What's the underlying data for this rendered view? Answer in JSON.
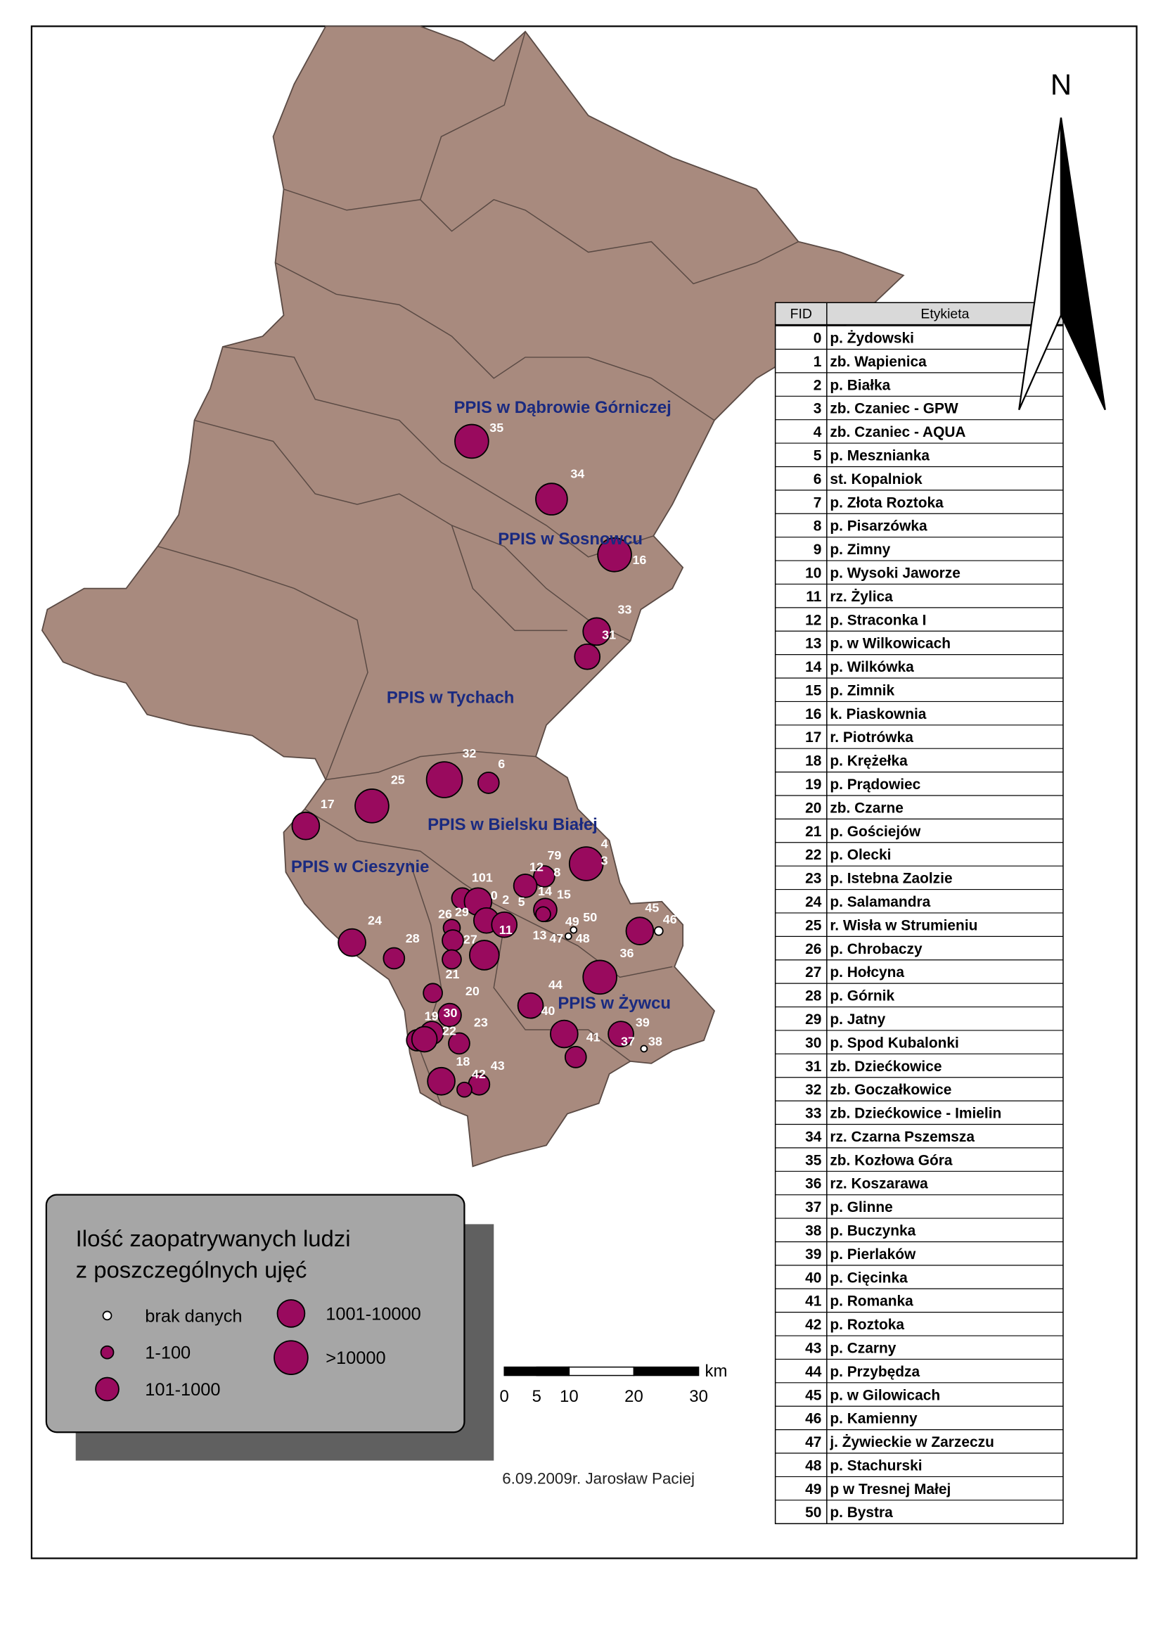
{
  "north": "N",
  "regions": [
    "PPIS w Dąbrowie Górniczej",
    "PPIS w Sosnowcu",
    "PPIS w Tychach",
    "PPIS w Bielsku Białej",
    "PPIS w Cieszynie",
    "PPIS w Żywcu"
  ],
  "map_labels": [
    "35",
    "34",
    "16",
    "33",
    "31",
    "32",
    "6",
    "25",
    "17",
    "4",
    "3",
    "79",
    "12",
    "8",
    "101",
    "0",
    "2",
    "5",
    "14",
    "15",
    "26",
    "29",
    "11",
    "13",
    "47",
    "48",
    "49",
    "50",
    "27",
    "24",
    "28",
    "21",
    "20",
    "36",
    "45",
    "46",
    "44",
    "40",
    "19",
    "30",
    "22",
    "23",
    "18",
    "41",
    "39",
    "37",
    "38",
    "42",
    "43"
  ],
  "legend": {
    "title": [
      "Ilość zaopatrywanych ludzi",
      "z poszczególnych ujęć"
    ],
    "items": [
      "brak danych",
      "1-100",
      "101-1000",
      "1001-10000",
      ">10000"
    ]
  },
  "scale": {
    "ticks": [
      0,
      5,
      10,
      20,
      30
    ],
    "unit": "km"
  },
  "footer": "6.09.2009r. Jarosław Paciej",
  "table": {
    "header": [
      "FID",
      "Etykieta"
    ],
    "rows": [
      [
        0,
        "p. Żydowski"
      ],
      [
        1,
        "zb. Wapienica"
      ],
      [
        2,
        "p. Białka"
      ],
      [
        3,
        "zb. Czaniec - GPW"
      ],
      [
        4,
        "zb. Czaniec - AQUA"
      ],
      [
        5,
        "p. Mesznianka"
      ],
      [
        6,
        "st. Kopalniok"
      ],
      [
        7,
        "p. Złota Roztoka"
      ],
      [
        8,
        "p. Pisarzówka"
      ],
      [
        9,
        "p. Zimny"
      ],
      [
        10,
        "p. Wysoki Jaworze"
      ],
      [
        11,
        "rz. Żylica"
      ],
      [
        12,
        "p. Straconka I"
      ],
      [
        13,
        "p. w Wilkowicach"
      ],
      [
        14,
        "p. Wilkówka"
      ],
      [
        15,
        "p. Zimnik"
      ],
      [
        16,
        "k. Piaskownia"
      ],
      [
        17,
        "r. Piotrówka"
      ],
      [
        18,
        "p. Krężełka"
      ],
      [
        19,
        "p. Prądowiec"
      ],
      [
        20,
        "zb. Czarne"
      ],
      [
        21,
        "p. Gościejów"
      ],
      [
        22,
        "p. Olecki"
      ],
      [
        23,
        "p. Istebna Zaolzie"
      ],
      [
        24,
        "p. Salamandra"
      ],
      [
        25,
        "r. Wisła w Strumieniu"
      ],
      [
        26,
        "p. Chrobaczy"
      ],
      [
        27,
        "p. Hołcyna"
      ],
      [
        28,
        "p. Górnik"
      ],
      [
        29,
        "p. Jatny"
      ],
      [
        30,
        "p. Spod Kubalonki"
      ],
      [
        31,
        "zb. Dziećkowice"
      ],
      [
        32,
        "zb. Goczałkowice"
      ],
      [
        33,
        "zb. Dziećkowice - Imielin"
      ],
      [
        34,
        "rz. Czarna Pszemsza"
      ],
      [
        35,
        "zb. Kozłowa Góra"
      ],
      [
        36,
        "rz. Koszarawa"
      ],
      [
        37,
        "p. Glinne"
      ],
      [
        38,
        "p. Buczynka"
      ],
      [
        39,
        "p. Pierlaków"
      ],
      [
        40,
        "p. Cięcinka"
      ],
      [
        41,
        "p. Romanka"
      ],
      [
        42,
        "p. Roztoka"
      ],
      [
        43,
        "p. Czarny"
      ],
      [
        44,
        "p. Przybędza"
      ],
      [
        45,
        "p. w Gilowicach"
      ],
      [
        46,
        "p. Kamienny"
      ],
      [
        47,
        "j. Żywieckie w Zarzeczu"
      ],
      [
        48,
        "p. Stachurski"
      ],
      [
        49,
        "p w Tresnej Małej"
      ],
      [
        50,
        "p. Bystra"
      ]
    ]
  }
}
